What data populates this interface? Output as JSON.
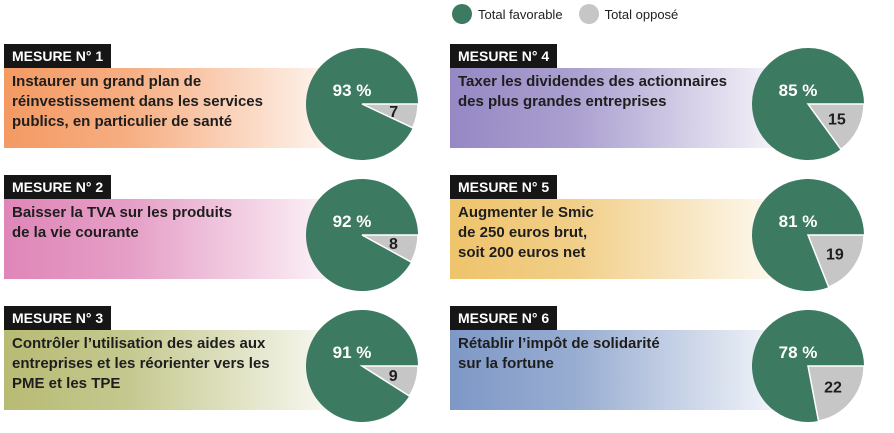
{
  "legend": {
    "favorable": {
      "label": "Total favorable",
      "color": "#3c7a62"
    },
    "oppose": {
      "label": "Total opposé",
      "color": "#c6c6c6"
    }
  },
  "chart_data": {
    "type": "pie",
    "series_names": [
      "Total favorable",
      "Total opposé"
    ],
    "charts": [
      {
        "badge": "MESURE N° 1",
        "text": "Instaurer un grand plan de\nréinvestissement dans les services\npublics, en particulier de santé",
        "favorable": 93,
        "oppose": 7,
        "favorable_label": "93 %",
        "oppose_label": "7",
        "band_color": "#f49a63"
      },
      {
        "badge": "MESURE N° 2",
        "text": "Baisser la TVA sur les produits\nde la vie courante",
        "favorable": 92,
        "oppose": 8,
        "favorable_label": "92 %",
        "oppose_label": "8",
        "band_color": "#df86b8"
      },
      {
        "badge": "MESURE N° 3",
        "text": "Contrôler l’utilisation des aides aux\nentreprises et les réorienter vers les\nPME et les TPE",
        "favorable": 91,
        "oppose": 9,
        "favorable_label": "91 %",
        "oppose_label": "9",
        "band_color": "#b7bb73"
      },
      {
        "badge": "MESURE N° 4",
        "text": "Taxer les dividendes des actionnaires\ndes plus grandes entreprises",
        "favorable": 85,
        "oppose": 15,
        "favorable_label": "85 %",
        "oppose_label": "15",
        "band_color": "#9688c4"
      },
      {
        "badge": "MESURE N° 5",
        "text": "Augmenter le Smic\nde 250 euros brut,\nsoit 200 euros net",
        "favorable": 81,
        "oppose": 19,
        "favorable_label": "81 %",
        "oppose_label": "19",
        "band_color": "#eec36b"
      },
      {
        "badge": "MESURE N° 6",
        "text": "Rétablir l’impôt de solidarité\nsur la fortune",
        "favorable": 78,
        "oppose": 22,
        "favorable_label": "78 %",
        "oppose_label": "22",
        "band_color": "#7e98c6"
      }
    ]
  }
}
